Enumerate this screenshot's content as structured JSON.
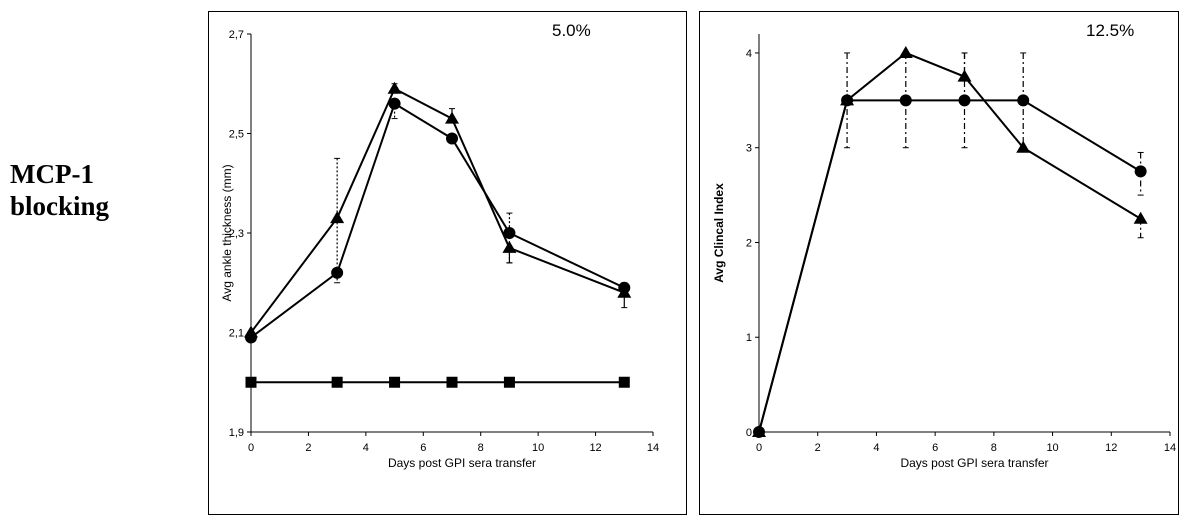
{
  "row_label": {
    "line1": "MCP-1",
    "line2": "blocking"
  },
  "chart_data": [
    {
      "type": "line",
      "annotation": "5.0%",
      "xlabel": "Days post GPI sera transfer",
      "ylabel": "Avg ankle thickness (mm)",
      "xlim": [
        0,
        14
      ],
      "ylim": [
        1.9,
        2.7
      ],
      "xticks": [
        "0",
        "2",
        "4",
        "6",
        "8",
        "10",
        "12",
        "14"
      ],
      "yticks": [
        "1,9",
        "2,1",
        "2,3",
        "2,5",
        "2,7"
      ],
      "series": [
        {
          "marker": "triangle",
          "x": [
            0,
            3,
            5,
            7,
            9,
            13
          ],
          "y": [
            2.1,
            2.33,
            2.59,
            2.53,
            2.27,
            2.18
          ],
          "err_up": [
            0,
            0,
            0.01,
            0.02,
            0,
            0
          ],
          "err_down": [
            0,
            0,
            0,
            0,
            0.03,
            0.03
          ],
          "err_style": "solid"
        },
        {
          "marker": "circle",
          "x": [
            0,
            3,
            5,
            7,
            9,
            13
          ],
          "y": [
            2.09,
            2.22,
            2.56,
            2.49,
            2.3,
            2.19
          ],
          "err_up": [
            0,
            0.23,
            0,
            0,
            0.04,
            0.01
          ],
          "err_down": [
            0,
            0.02,
            0.03,
            0,
            0.06,
            0
          ],
          "err_style": "dotted"
        },
        {
          "marker": "square",
          "x": [
            0,
            3,
            5,
            7,
            9,
            13
          ],
          "y": [
            2.0,
            2.0,
            2.0,
            2.0,
            2.0,
            2.0
          ]
        }
      ]
    },
    {
      "type": "line",
      "annotation": "12.5%",
      "xlabel": "Days post GPI sera transfer",
      "ylabel": "Avg Clincal Index",
      "xlim": [
        0,
        14
      ],
      "ylim": [
        0,
        4.2
      ],
      "xticks": [
        "0",
        "2",
        "4",
        "6",
        "8",
        "10",
        "12",
        "14"
      ],
      "yticks": [
        "0",
        "1",
        "2",
        "3",
        "4"
      ],
      "series": [
        {
          "marker": "triangle",
          "x": [
            0,
            3,
            5,
            7,
            9,
            13
          ],
          "y": [
            0,
            3.5,
            4.0,
            3.75,
            3.0,
            2.25
          ],
          "err_up": [
            0,
            0,
            0,
            0.25,
            0,
            0
          ],
          "err_down": [
            0,
            0,
            0,
            0,
            0,
            0.2
          ],
          "err_style": "dashdot"
        },
        {
          "marker": "circle",
          "x": [
            0,
            3,
            5,
            7,
            9,
            13
          ],
          "y": [
            0,
            3.5,
            3.5,
            3.5,
            3.5,
            2.75
          ],
          "err_up": [
            0,
            0.5,
            0.5,
            0.5,
            0.5,
            0.2
          ],
          "err_down": [
            0,
            0.5,
            0.5,
            0.5,
            0.5,
            0.25
          ],
          "err_style": "dashdot"
        }
      ]
    }
  ]
}
